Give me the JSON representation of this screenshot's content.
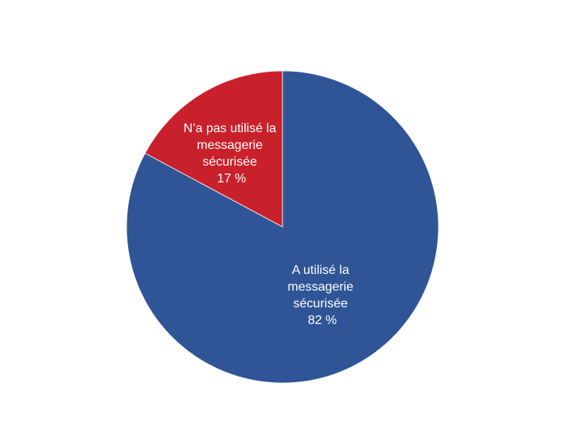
{
  "chart_data": {
    "type": "pie",
    "title": "",
    "start_angle": "12 o'clock, counterclockwise for first slice",
    "slices": [
      {
        "label_lines": [
          "N’a pas utilisé la",
          "messagerie",
          "sécurisée",
          "17 %"
        ],
        "category": "N’a pas utilisé la messagerie sécurisée",
        "value": 17,
        "color": "#C9212B"
      },
      {
        "label_lines": [
          "A utilisé la",
          "messagerie",
          "sécurisée",
          "82 %"
        ],
        "category": "A utilisé la messagerie sécurisée",
        "value": 82,
        "color": "#2F5597"
      }
    ],
    "legend": "none",
    "data_labels": "inside"
  }
}
